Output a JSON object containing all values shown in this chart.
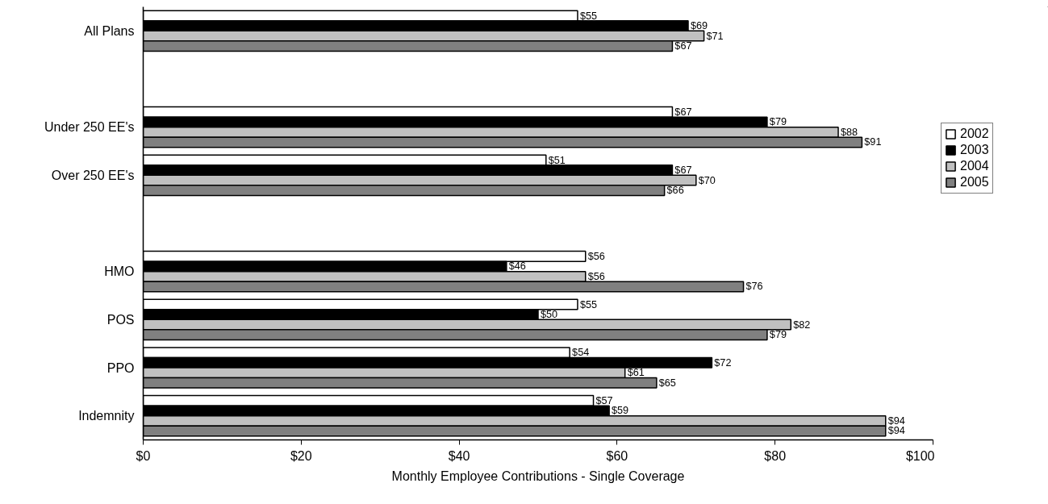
{
  "chart_data": {
    "type": "bar",
    "orientation": "horizontal",
    "xlabel": "Monthly Employee Contributions - Single Coverage",
    "categories": [
      "All Plans",
      null,
      "Under 250 EE's",
      "Over 250 EE's",
      null,
      "HMO",
      "POS",
      "PPO",
      "Indemnity"
    ],
    "xlim": [
      0,
      100
    ],
    "xticks": [
      {
        "value": 0,
        "label": "$0"
      },
      {
        "value": 20,
        "label": "$20"
      },
      {
        "value": 40,
        "label": "$40"
      },
      {
        "value": 60,
        "label": "$60"
      },
      {
        "value": 80,
        "label": "$80"
      },
      {
        "value": 100,
        "label": "$100"
      }
    ],
    "series": [
      {
        "name": "2002",
        "color": "#ffffff",
        "values": [
          55,
          null,
          67,
          51,
          null,
          56,
          55,
          54,
          57
        ],
        "value_labels": [
          "$55",
          null,
          "$67",
          "$51",
          null,
          "$56",
          "$55",
          "$54",
          "$57"
        ]
      },
      {
        "name": "2003",
        "color": "#000000",
        "values": [
          69,
          null,
          79,
          67,
          null,
          46,
          50,
          72,
          59
        ],
        "value_labels": [
          "$69",
          null,
          "$79",
          "$67",
          null,
          "$46",
          "$50",
          "$72",
          "$59"
        ]
      },
      {
        "name": "2004",
        "color": "#c0c0c0",
        "values": [
          71,
          null,
          88,
          70,
          null,
          56,
          82,
          61,
          94
        ],
        "value_labels": [
          "$71",
          null,
          "$88",
          "$70",
          null,
          "$56",
          "$82",
          "$61",
          "$94"
        ]
      },
      {
        "name": "2005",
        "color": "#808080",
        "values": [
          67,
          null,
          91,
          66,
          null,
          76,
          79,
          65,
          94
        ],
        "value_labels": [
          "$67",
          null,
          "$91",
          "$66",
          null,
          "$76",
          "$79",
          "$65",
          "$94"
        ]
      }
    ],
    "grid": false,
    "legend": "right"
  }
}
